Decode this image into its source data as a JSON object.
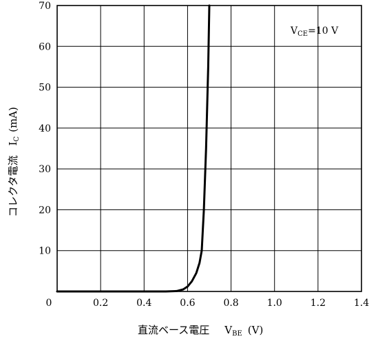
{
  "chart_data": {
    "type": "line",
    "xlabel": "直流ベース電圧",
    "xlabel_symbol": "V",
    "xlabel_symbol_sub": "BE",
    "xlabel_unit": "(V)",
    "ylabel": "コレクタ電流",
    "ylabel_symbol": "I",
    "ylabel_symbol_sub": "C",
    "ylabel_unit": "(mA)",
    "annotation": {
      "symbol": "V",
      "sub": "CE",
      "text": "=10  V"
    },
    "xlim": [
      0,
      1.4
    ],
    "ylim": [
      0,
      70
    ],
    "xticks": [
      "0",
      "0.2",
      "0.4",
      "0.6",
      "0.8",
      "1.0",
      "1.2",
      "1.4"
    ],
    "yticks": [
      "10",
      "20",
      "30",
      "40",
      "50",
      "60",
      "70"
    ],
    "grid": true,
    "series": [
      {
        "x": [
          0,
          0.3,
          0.5,
          0.55,
          0.58,
          0.6,
          0.62,
          0.64,
          0.655,
          0.665,
          0.675,
          0.685,
          0.695,
          0.7
        ],
        "y": [
          0,
          0,
          0,
          0.1,
          0.5,
          1.2,
          2.5,
          4.5,
          7.0,
          10.0,
          20.0,
          35.0,
          55.0,
          70.0
        ]
      }
    ]
  }
}
